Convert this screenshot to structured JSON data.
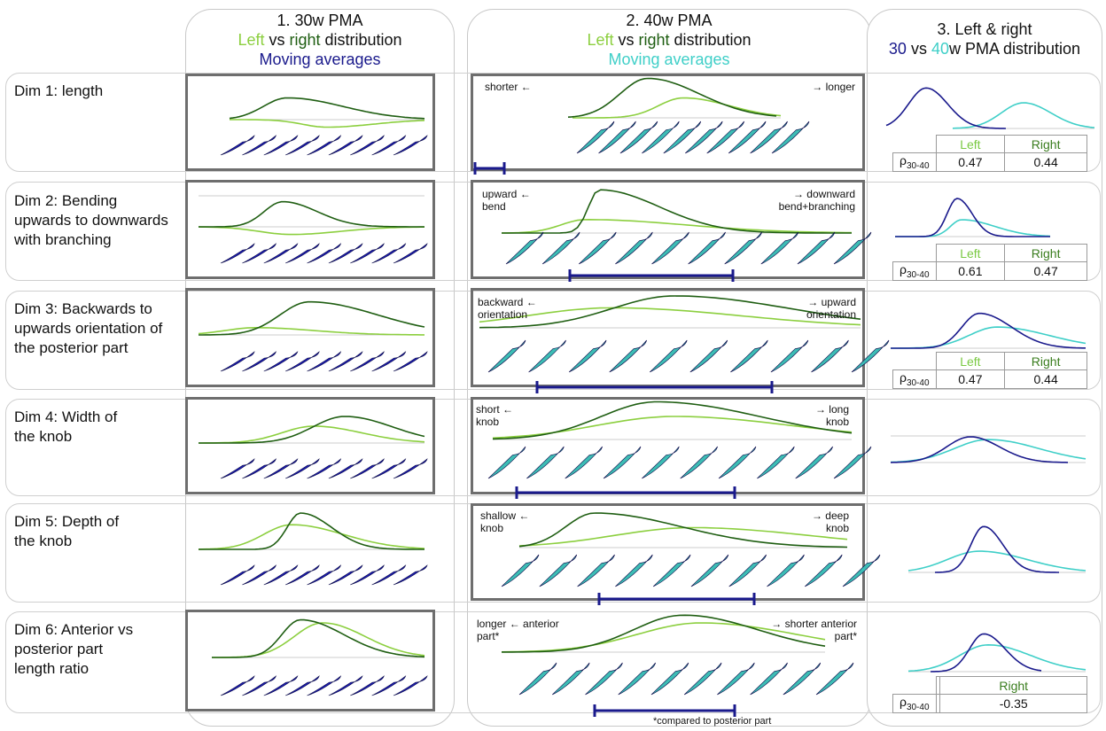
{
  "columns": [
    {
      "title_line1": "1. 30w PMA",
      "left_word": "Left",
      "vs_word": " vs ",
      "right_word": "right",
      "dist_word": " distribution",
      "title_line3": "Moving averages"
    },
    {
      "title_line1": "2. 40w PMA",
      "left_word": "Left",
      "vs_word": " vs ",
      "right_word": "right",
      "dist_word": " distribution",
      "title_line3": "Moving averages"
    },
    {
      "title_line1": "3. Left & right",
      "w30": "30",
      "vs_word": " vs ",
      "w40": "40",
      "rest": "w PMA distribution"
    }
  ],
  "colors": {
    "light_green": "#8ccf3f",
    "dark_green": "#1f5e12",
    "navy": "#1a1a8c",
    "cyan": "#3fcfc8",
    "teal_shape": "#3dbdb5",
    "blue_shape": "#1c1cb0"
  },
  "rows": [
    {
      "label": "Dim 1: length",
      "left_text": "shorter ←",
      "right_text": "→ longer",
      "table": {
        "left_header": "Left",
        "right_header": "Right",
        "rho": "ρ30-40",
        "left": "0.47",
        "right": "0.44"
      }
    },
    {
      "label": "Dim 2: Bending upwards to downwards with branching",
      "left_text": "upward ← bend",
      "right_text": "→ downward bend+branching",
      "table": {
        "left_header": "Left",
        "right_header": "Right",
        "rho": "ρ30-40",
        "left": "0.61",
        "right": "0.47"
      }
    },
    {
      "label": "Dim 3: Backwards to upwards orientation of the posterior part",
      "left_text": "backward ← orientation",
      "right_text": "→ upward orientation",
      "table": {
        "left_header": "Left",
        "right_header": "Right",
        "rho": "ρ30-40",
        "left": "0.47",
        "right": "0.44"
      }
    },
    {
      "label": "Dim 4: Width of the knob",
      "left_text": "short ← knob",
      "right_text": "→ long knob"
    },
    {
      "label": "Dim 5: Depth of the knob",
      "left_text": "shallow ← knob",
      "right_text": "→ deep knob"
    },
    {
      "label": "Dim 6: Anterior vs posterior part length ratio",
      "left_text": "longer ← anterior part*",
      "right_text": "→ shorter anterior part*",
      "table": {
        "left_header": "",
        "right_header": "Right",
        "rho": "ρ30-40",
        "left": "",
        "right": "-0.35"
      }
    }
  ],
  "footnote": "*compared to posterior part"
}
